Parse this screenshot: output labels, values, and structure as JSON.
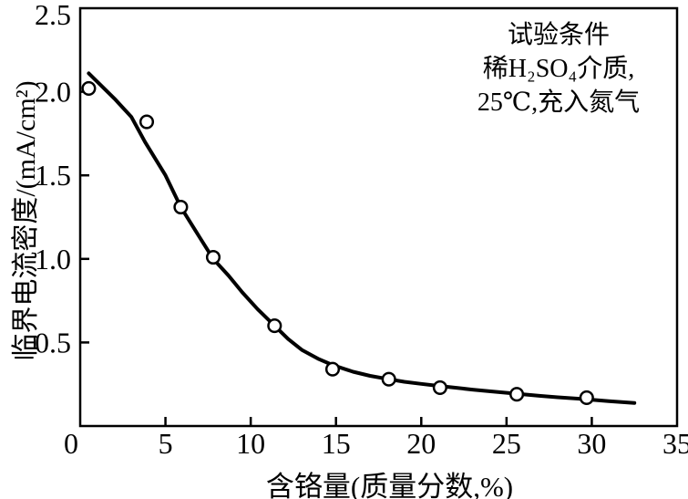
{
  "figure": {
    "background": "#ffffff",
    "ink": "#000000"
  },
  "chart_data": {
    "type": "scatter",
    "title": "",
    "xlabel": "含铬量(质量分数,%)",
    "ylabel": "临界电流密度/(mA/cm²)",
    "xlim": [
      0,
      35
    ],
    "ylim": [
      0,
      2.5
    ],
    "grid": false,
    "legend": "none",
    "marker": "open-circle",
    "line_color": "#000000",
    "xticks": {
      "values": [
        0,
        5,
        10,
        15,
        20,
        25,
        30,
        35
      ],
      "labels": [
        "0",
        "5",
        "10",
        "15",
        "20",
        "25",
        "30",
        "35"
      ]
    },
    "yticks": {
      "values": [
        0.5,
        1.0,
        1.5,
        2.0,
        2.5
      ],
      "labels": [
        "0.5",
        "1.0",
        "1.5",
        "2.0",
        "2.5"
      ]
    },
    "points": [
      [
        0.5,
        2.02
      ],
      [
        3.9,
        1.82
      ],
      [
        5.9,
        1.31
      ],
      [
        7.8,
        1.01
      ],
      [
        11.4,
        0.6
      ],
      [
        14.8,
        0.34
      ],
      [
        18.1,
        0.28
      ],
      [
        21.1,
        0.23
      ],
      [
        25.6,
        0.19
      ],
      [
        29.7,
        0.17
      ]
    ],
    "fit_curve": [
      [
        0.5,
        2.11
      ],
      [
        1,
        2.06
      ],
      [
        2,
        1.96
      ],
      [
        3,
        1.85
      ],
      [
        3.8,
        1.7
      ],
      [
        5,
        1.5
      ],
      [
        5.9,
        1.31
      ],
      [
        7,
        1.13
      ],
      [
        7.8,
        1.0
      ],
      [
        8.7,
        0.9
      ],
      [
        9.5,
        0.8
      ],
      [
        10.4,
        0.7
      ],
      [
        11.4,
        0.6
      ],
      [
        12.2,
        0.52
      ],
      [
        13,
        0.455
      ],
      [
        14,
        0.4
      ],
      [
        14.8,
        0.365
      ],
      [
        16,
        0.325
      ],
      [
        17,
        0.3
      ],
      [
        18.1,
        0.28
      ],
      [
        19,
        0.265
      ],
      [
        20,
        0.252
      ],
      [
        21,
        0.24
      ],
      [
        22,
        0.229
      ],
      [
        23,
        0.218
      ],
      [
        24,
        0.208
      ],
      [
        25.6,
        0.193
      ],
      [
        27,
        0.18
      ],
      [
        28,
        0.172
      ],
      [
        29.7,
        0.16
      ],
      [
        31,
        0.149
      ],
      [
        32.5,
        0.138
      ]
    ],
    "annotation": {
      "lines": [
        "试验条件",
        "稀H₂SO₄介质,",
        "25℃,充入氮气"
      ]
    }
  }
}
